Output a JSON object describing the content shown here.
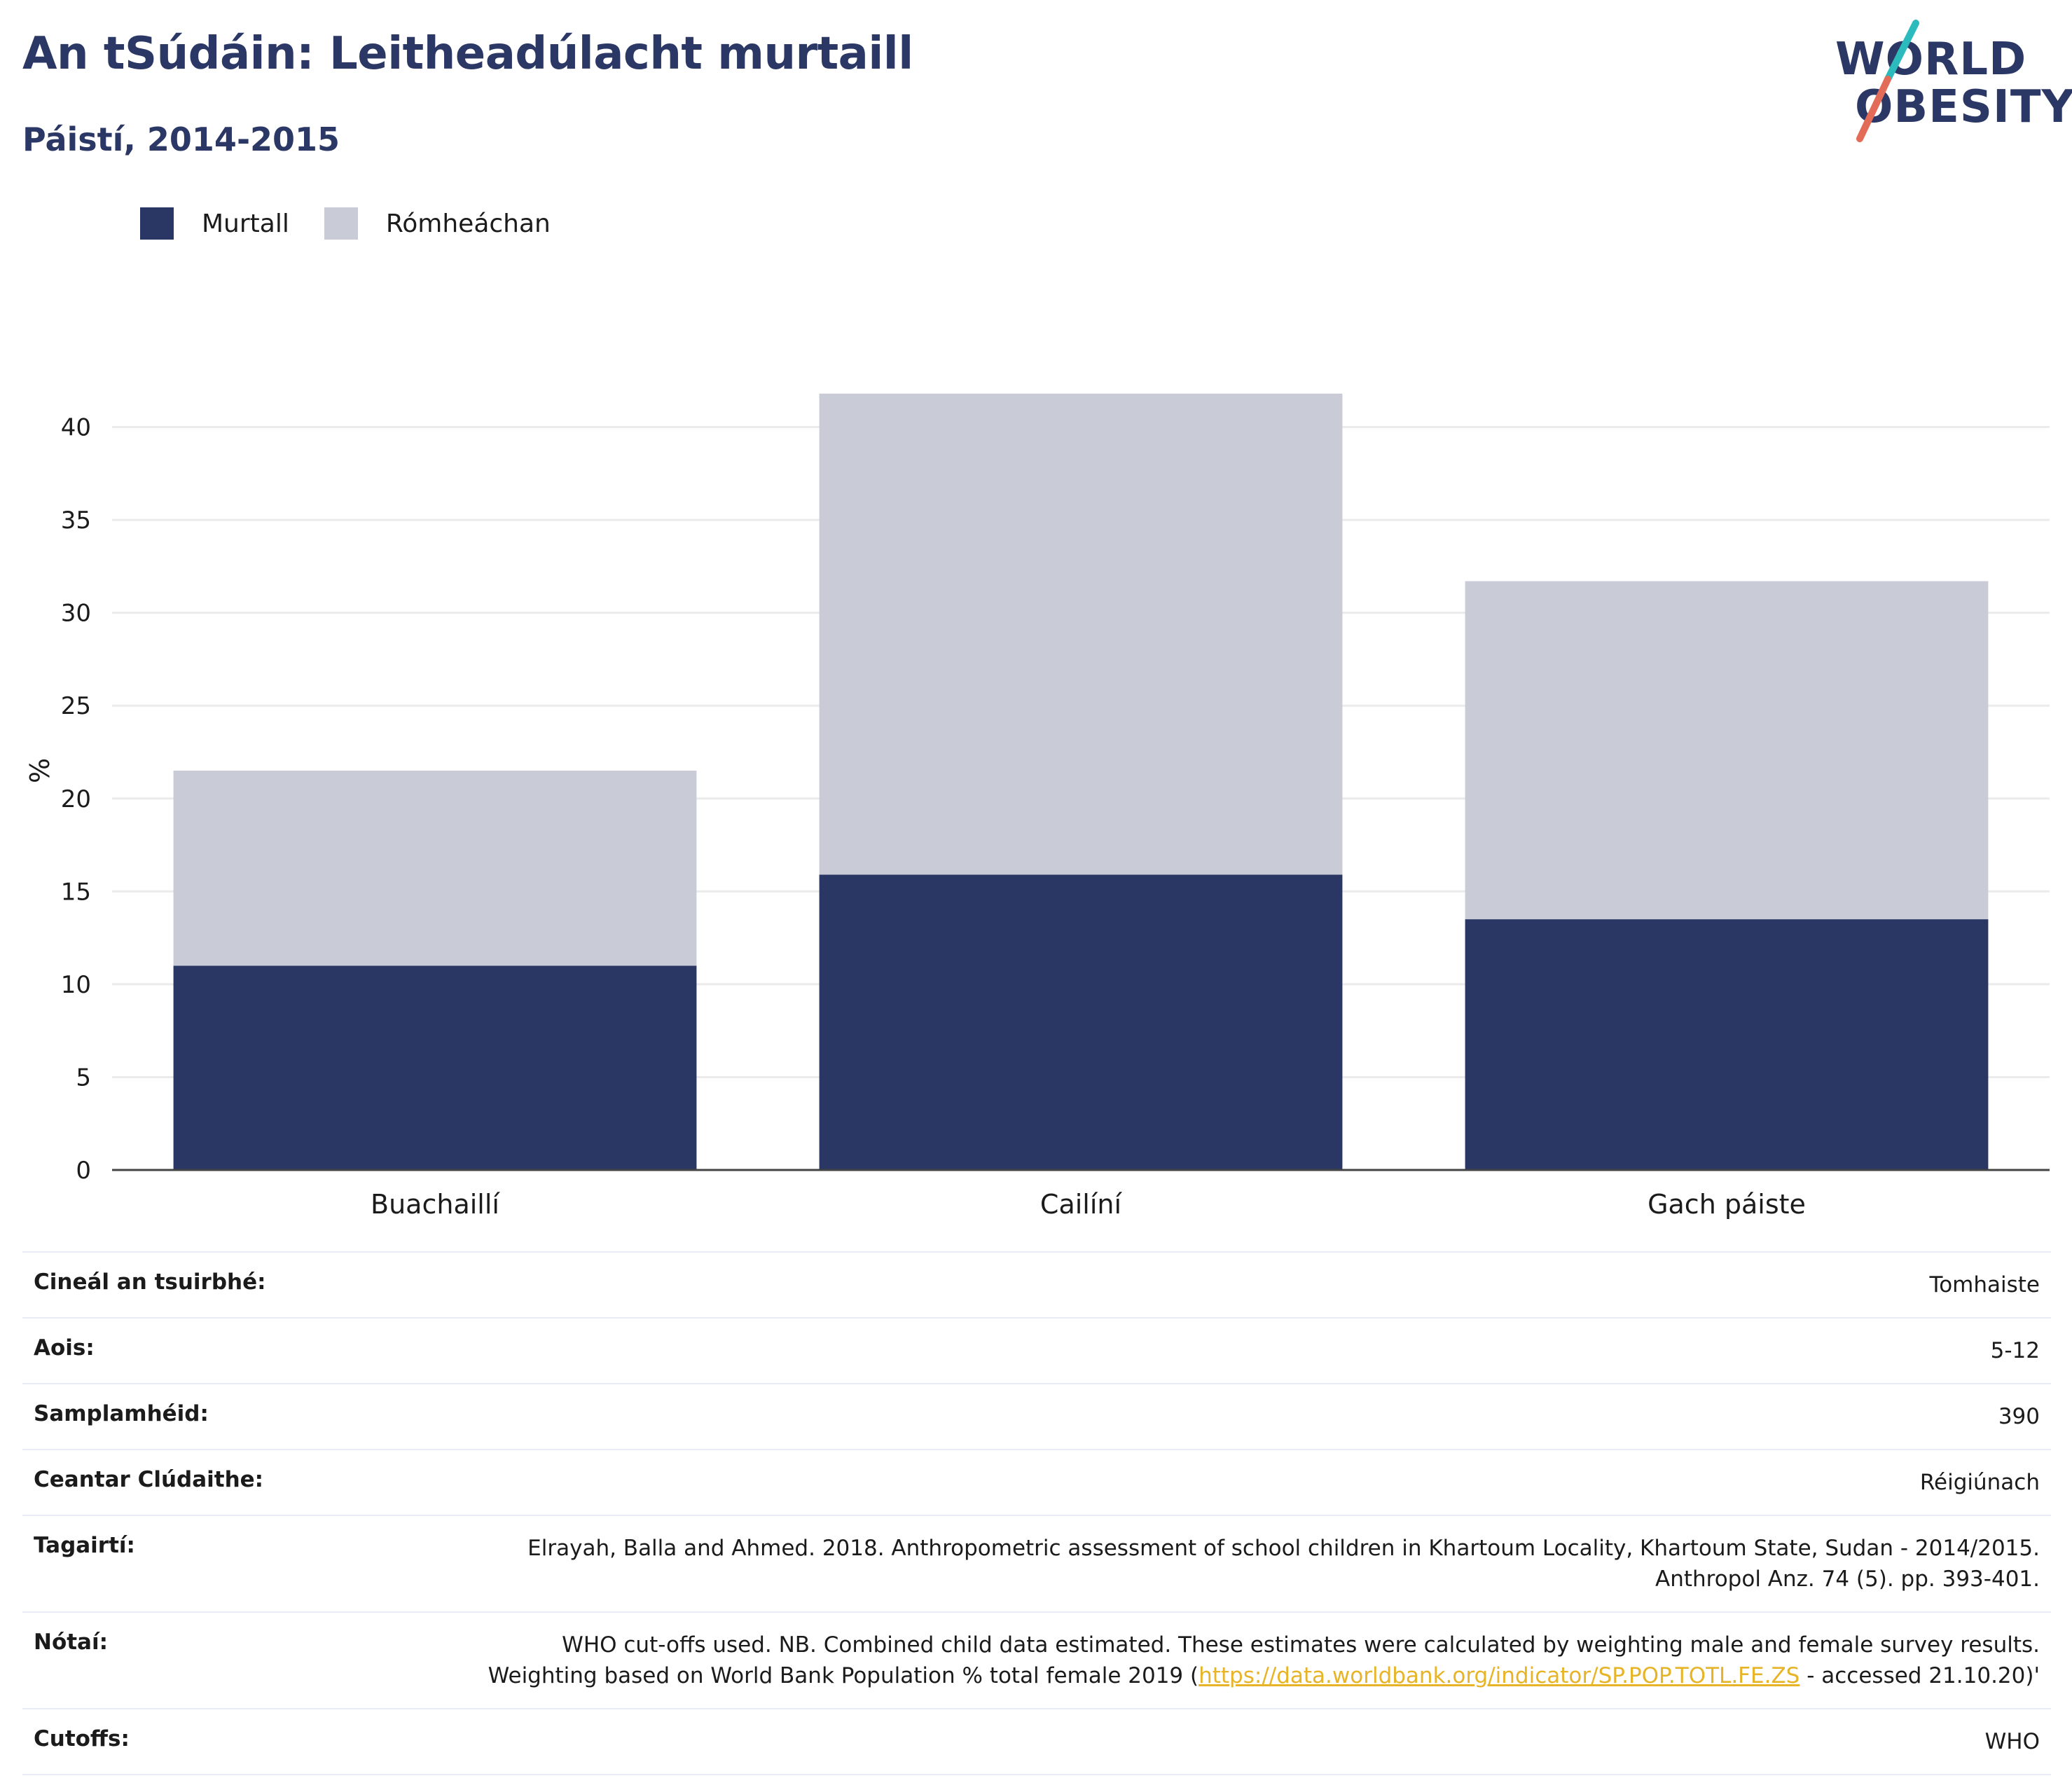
{
  "header": {
    "title": "An tSúdáin: Leitheadúlacht murtaill",
    "subtitle": "Páistí, 2014-2015"
  },
  "logo": {
    "line1": "WORLD",
    "line2": "OBESITY",
    "accent_colors": [
      "#2bbbbd",
      "#e36c58"
    ]
  },
  "legend": [
    {
      "label": "Murtall",
      "color": "#2a3764"
    },
    {
      "label": "Rómheáchan",
      "color": "#c9cbd6"
    }
  ],
  "chart_data": {
    "type": "bar",
    "stacked": true,
    "categories": [
      "Buachaillí",
      "Cailíní",
      "Gach páiste"
    ],
    "series": [
      {
        "name": "Murtall",
        "values": [
          11.0,
          15.9,
          13.5
        ],
        "color": "#2a3764"
      },
      {
        "name": "Rómheáchan",
        "values": [
          10.5,
          25.9,
          18.2
        ],
        "color": "#c9cbd6"
      }
    ],
    "ylabel": "%",
    "ylim": [
      0,
      43
    ],
    "yticks": [
      0,
      5,
      10,
      15,
      20,
      25,
      30,
      35,
      40
    ],
    "grid": true,
    "legend_position": "top-left"
  },
  "info": {
    "rows": [
      {
        "key": "Cineál an tsuirbhé:",
        "value": "Tomhaiste"
      },
      {
        "key": "Aois:",
        "value": "5-12"
      },
      {
        "key": "Samplamhéid:",
        "value": "390"
      },
      {
        "key": "Ceantar Clúdaithe:",
        "value": "Réigiúnach"
      },
      {
        "key": "Tagairtí:",
        "value": "Elrayah, Balla and Ahmed. 2018. Anthropometric assessment of school children in Khartoum Locality, Khartoum State, Sudan - 2014/2015. Anthropol Anz. 74 (5). pp. 393-401."
      },
      {
        "key": "Nótaí:",
        "value_before": "WHO cut-offs used. NB. Combined child data estimated. These estimates were calculated by weighting male and female survey results. Weighting based on World Bank Population % total female 2019 (",
        "link": "https://data.worldbank.org/indicator/SP.POP.TOTL.FE.ZS",
        "value_after": " - accessed 21.10.20)'"
      },
      {
        "key": "Cutoffs:",
        "value": "WHO"
      }
    ]
  }
}
